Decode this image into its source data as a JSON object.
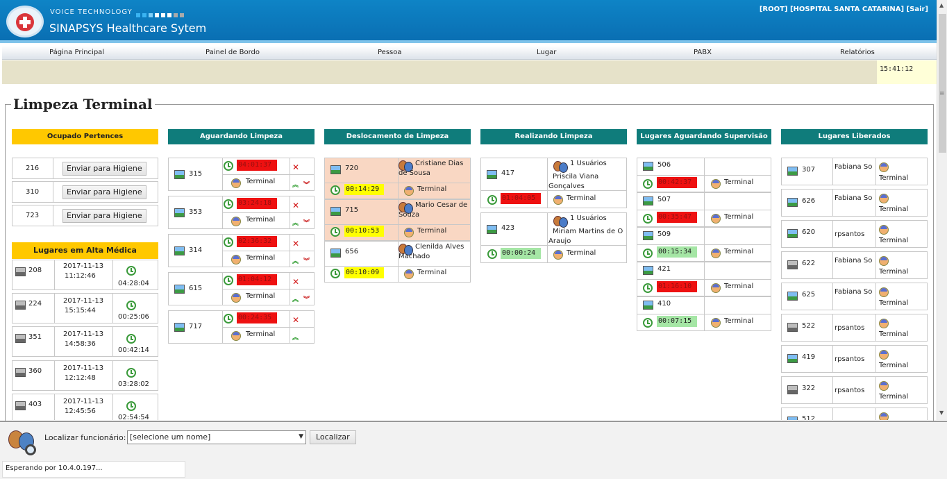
{
  "header": {
    "brand_small": "VOICE TECHNOLOGY",
    "title": "SINAPSYS Healthcare Sytem",
    "user_info": "[ROOT] [HOSPITAL SANTA CATARINA] [Sair]"
  },
  "menu": [
    "Página Principal",
    "Painel de Bordo",
    "Pessoa",
    "Lugar",
    "PABX",
    "Relatórios"
  ],
  "clock": "15:41:12",
  "page_title": "Limpeza Terminal",
  "columns": {
    "ocupado": "Ocupado Pertences",
    "alta": "Lugares em Alta Médica",
    "aguardando": "Aguardando Limpeza",
    "deslocamento": "Deslocamento de Limpeza",
    "realizando": "Realizando Limpeza",
    "supervisao": "Lugares Aguardando Supervisão",
    "liberados": "Lugares Liberados"
  },
  "ocupado_rows": [
    {
      "room": "216",
      "button": "Enviar para Higiene"
    },
    {
      "room": "310",
      "button": "Enviar para Higiene"
    },
    {
      "room": "723",
      "button": "Enviar para Higiene"
    }
  ],
  "alta_rows": [
    {
      "room": "208",
      "date": "2017-11-13",
      "time": "11:12:46",
      "elapsed": "04:28:04"
    },
    {
      "room": "224",
      "date": "2017-11-13",
      "time": "15:15:44",
      "elapsed": "00:25:06"
    },
    {
      "room": "351",
      "date": "2017-11-13",
      "time": "14:58:36",
      "elapsed": "00:42:14"
    },
    {
      "room": "360",
      "date": "2017-11-13",
      "time": "12:12:48",
      "elapsed": "03:28:02"
    },
    {
      "room": "403",
      "date": "2017-11-13",
      "time": "12:45:56",
      "elapsed": "02:54:54"
    }
  ],
  "aguardando_rows": [
    {
      "room": "315",
      "timer": "04:01:37",
      "type": "Terminal"
    },
    {
      "room": "353",
      "timer": "03:24:18",
      "type": "Terminal"
    },
    {
      "room": "314",
      "timer": "02:36:32",
      "type": "Terminal"
    },
    {
      "room": "615",
      "timer": "01:04:12",
      "type": "Terminal"
    },
    {
      "room": "717",
      "timer": "00:24:35",
      "type": "Terminal"
    }
  ],
  "deslocamento_rows": [
    {
      "room": "720",
      "person": "Cristiane Dias de Sousa",
      "timer": "00:14:29",
      "type": "Terminal"
    },
    {
      "room": "715",
      "person": "Mario Cesar de Souza",
      "timer": "00:10:53",
      "type": "Terminal"
    },
    {
      "room": "656",
      "person": "Clenilda Alves Machado",
      "timer": "00:10:09",
      "type": "Terminal"
    }
  ],
  "realizando_rows": [
    {
      "room": "417",
      "users": "1 Usuários",
      "person": "Priscila Viana Gonçalves",
      "timer": "01:04:05",
      "type": "Terminal"
    },
    {
      "room": "423",
      "users": "1 Usuários",
      "person": "Miriam Martins de O Araujo",
      "timer": "00:00:24",
      "type": "Terminal"
    }
  ],
  "supervisao_rows": [
    {
      "room": "506",
      "timer": "00:42:37",
      "type": "Terminal"
    },
    {
      "room": "507",
      "timer": "00:35:47",
      "type": "Terminal"
    },
    {
      "room": "509",
      "timer": "00:15:34",
      "type": "Terminal"
    },
    {
      "room": "421",
      "timer": "01:16:10",
      "type": "Terminal"
    },
    {
      "room": "410",
      "timer": "00:07:15",
      "type": "Terminal"
    }
  ],
  "liberados_rows": [
    {
      "room": "307",
      "user": "Fabiana So",
      "type": "Terminal"
    },
    {
      "room": "626",
      "user": "Fabiana So",
      "type": "Terminal"
    },
    {
      "room": "620",
      "user": "rpsantos",
      "type": "Terminal"
    },
    {
      "room": "622",
      "user": "Fabiana So",
      "type": "Terminal"
    },
    {
      "room": "625",
      "user": "Fabiana So",
      "type": "Terminal"
    },
    {
      "room": "522",
      "user": "rpsantos",
      "type": "Terminal"
    },
    {
      "room": "419",
      "user": "rpsantos",
      "type": "Terminal"
    },
    {
      "room": "322",
      "user": "rpsantos",
      "type": "Terminal"
    },
    {
      "room": "512",
      "user": "",
      "type": ""
    }
  ],
  "footer": {
    "label": "Localizar funcionário:",
    "select_value": "[selecione um nome]",
    "button": "Localizar",
    "status": "Esperando por 10.4.0.197..."
  },
  "colors": {
    "header": "#0a6fb3",
    "teal": "#0f7c7b",
    "gold": "#ffc800",
    "red": "#ee1111",
    "yellow": "#ffff00",
    "green": "#a5e6a5",
    "peach": "#f9d7c3"
  }
}
